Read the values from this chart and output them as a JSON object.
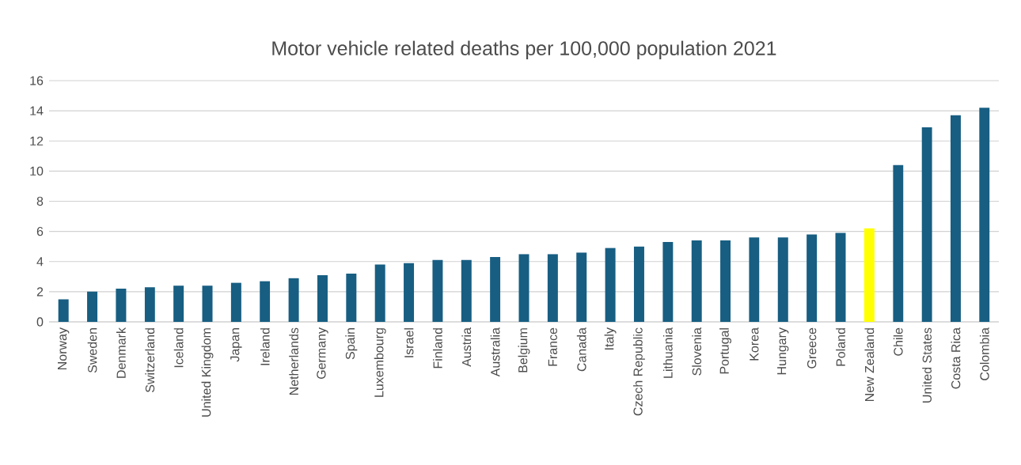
{
  "chart_data": {
    "type": "bar",
    "title": "Motor vehicle related  deaths per 100,000 population 2021",
    "categories": [
      "Norway",
      "Sweden",
      "Denmark",
      "Switzerland",
      "Iceland",
      "United Kingdom",
      "Japan",
      "Ireland",
      "Netherlands",
      "Germany",
      "Spain",
      "Luxembourg",
      "Israel",
      "Finland",
      "Austria",
      "Australia",
      "Belgium",
      "France",
      "Canada",
      "Italy",
      "Czech Republic",
      "Lithuania",
      "Slovenia",
      "Portugal",
      "Korea",
      "Hungary",
      "Greece",
      "Poland",
      "New Zealand",
      "Chile",
      "United States",
      "Costa Rica",
      "Colombia"
    ],
    "values": [
      1.5,
      2.0,
      2.2,
      2.3,
      2.4,
      2.4,
      2.6,
      2.7,
      2.9,
      3.1,
      3.2,
      3.8,
      3.9,
      4.1,
      4.1,
      4.3,
      4.5,
      4.5,
      4.6,
      4.9,
      5.0,
      5.3,
      5.4,
      5.4,
      5.6,
      5.6,
      5.8,
      5.9,
      6.2,
      10.4,
      12.9,
      13.7,
      14.2
    ],
    "colors": [
      "#175e82",
      "#175e82",
      "#175e82",
      "#175e82",
      "#175e82",
      "#175e82",
      "#175e82",
      "#175e82",
      "#175e82",
      "#175e82",
      "#175e82",
      "#175e82",
      "#175e82",
      "#175e82",
      "#175e82",
      "#175e82",
      "#175e82",
      "#175e82",
      "#175e82",
      "#175e82",
      "#175e82",
      "#175e82",
      "#175e82",
      "#175e82",
      "#175e82",
      "#175e82",
      "#175e82",
      "#175e82",
      "#ffff00",
      "#175e82",
      "#175e82",
      "#175e82",
      "#175e82"
    ],
    "ylim": [
      0,
      16
    ],
    "yticks": [
      0,
      2,
      4,
      6,
      8,
      10,
      12,
      14,
      16
    ],
    "grid": "y"
  }
}
